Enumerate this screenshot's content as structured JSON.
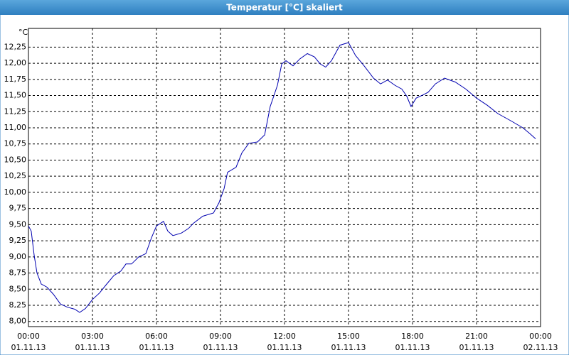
{
  "chart_data": {
    "type": "line",
    "title": "Temperatur [°C] skaliert",
    "y_label": "°C",
    "x": [
      0,
      0.13,
      0.27,
      0.4,
      0.6,
      0.87,
      1.17,
      1.5,
      1.83,
      2.17,
      2.4,
      2.67,
      3,
      3.33,
      3.67,
      4,
      4.33,
      4.57,
      4.83,
      5.17,
      5.5,
      5.77,
      6,
      6.33,
      6.53,
      6.77,
      7.17,
      7.5,
      7.73,
      8.17,
      8.67,
      8.93,
      9.17,
      9.33,
      9.73,
      10,
      10.33,
      10.73,
      11.07,
      11.33,
      11.67,
      11.87,
      12.07,
      12.4,
      12.73,
      13.07,
      13.4,
      13.67,
      13.93,
      14.2,
      14.6,
      15,
      15.33,
      15.73,
      16.17,
      16.5,
      16.83,
      17.17,
      17.5,
      17.73,
      17.93,
      18.17,
      18.5,
      18.73,
      19.07,
      19.5,
      20,
      20.5,
      21,
      21.5,
      22,
      22.6,
      23.17,
      23.5,
      23.77
    ],
    "series": [
      {
        "color": "#0000b0",
        "values": [
          9.48,
          9.4,
          9.02,
          8.75,
          8.58,
          8.53,
          8.42,
          8.27,
          8.22,
          8.19,
          8.14,
          8.2,
          8.34,
          8.44,
          8.58,
          8.71,
          8.78,
          8.89,
          8.89,
          9.0,
          9.05,
          9.3,
          9.48,
          9.55,
          9.4,
          9.33,
          9.37,
          9.44,
          9.52,
          9.63,
          9.68,
          9.84,
          10.06,
          10.31,
          10.39,
          10.61,
          10.76,
          10.78,
          10.89,
          11.33,
          11.66,
          11.99,
          12.04,
          11.96,
          12.07,
          12.15,
          12.1,
          11.99,
          11.94,
          12.04,
          12.28,
          12.32,
          12.12,
          11.96,
          11.77,
          11.68,
          11.74,
          11.66,
          11.6,
          11.49,
          11.33,
          11.46,
          11.51,
          11.55,
          11.68,
          11.77,
          11.71,
          11.6,
          11.46,
          11.35,
          11.22,
          11.11,
          11.0,
          10.91,
          10.83
        ]
      }
    ],
    "xlim": [
      0,
      24
    ],
    "xticks": [
      {
        "value": 0,
        "label": [
          "00:00",
          "01.11.13"
        ]
      },
      {
        "value": 3,
        "label": [
          "03:00",
          "01.11.13"
        ]
      },
      {
        "value": 6,
        "label": [
          "06:00",
          "01.11.13"
        ]
      },
      {
        "value": 9,
        "label": [
          "09:00",
          "01.11.13"
        ]
      },
      {
        "value": 12,
        "label": [
          "12:00",
          "01.11.13"
        ]
      },
      {
        "value": 15,
        "label": [
          "15:00",
          "01.11.13"
        ]
      },
      {
        "value": 18,
        "label": [
          "18:00",
          "01.11.13"
        ]
      },
      {
        "value": 21,
        "label": [
          "21:00",
          "01.11.13"
        ]
      },
      {
        "value": 24,
        "label": [
          "00:00",
          "02.11.13"
        ]
      }
    ],
    "ylim": [
      7.92,
      12.54
    ],
    "yticks": [
      {
        "value": 8,
        "label": "8,00"
      },
      {
        "value": 8.25,
        "label": "8,25"
      },
      {
        "value": 8.5,
        "label": "8,50"
      },
      {
        "value": 8.75,
        "label": "8,75"
      },
      {
        "value": 9,
        "label": "9,00"
      },
      {
        "value": 9.25,
        "label": "9,25"
      },
      {
        "value": 9.5,
        "label": "9,50"
      },
      {
        "value": 9.75,
        "label": "9,75"
      },
      {
        "value": 10,
        "label": "10,00"
      },
      {
        "value": 10.25,
        "label": "10,25"
      },
      {
        "value": 10.5,
        "label": "10,50"
      },
      {
        "value": 10.75,
        "label": "10,75"
      },
      {
        "value": 11,
        "label": "11,00"
      },
      {
        "value": 11.25,
        "label": "11,25"
      },
      {
        "value": 11.5,
        "label": "11,50"
      },
      {
        "value": 11.75,
        "label": "11,75"
      },
      {
        "value": 12,
        "label": "12,00"
      },
      {
        "value": 12.25,
        "label": "12,25"
      }
    ],
    "grid": true
  }
}
